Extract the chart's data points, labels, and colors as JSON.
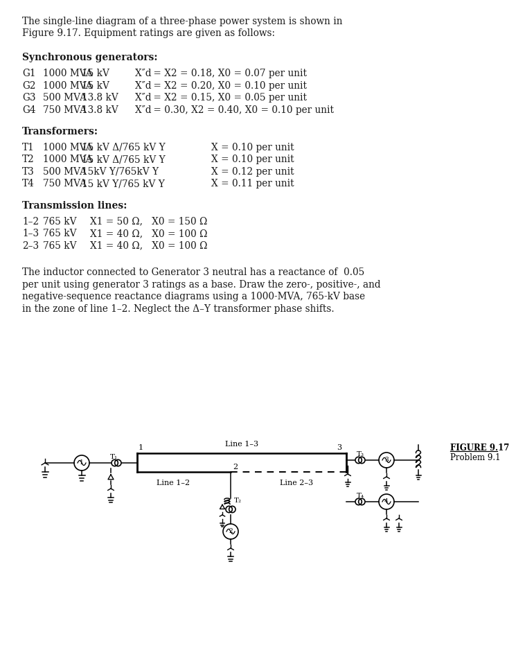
{
  "bg_color": "#ffffff",
  "text_color": "#1a1a1a",
  "title_line1": "The single-line diagram of a three-phase power system is shown in",
  "title_line2": "Figure 9.17. Equipment ratings are given as follows:",
  "sync_header": "Synchronous generators:",
  "gen_rows": [
    [
      "G1",
      "1000 MVA",
      "15 kV",
      "X″d = X2 = 0.18, X0 = 0.07 per unit"
    ],
    [
      "G2",
      "1000 MVA",
      "15 kV",
      "X″d = X2 = 0.20, X0 = 0.10 per unit"
    ],
    [
      "G3",
      "500 MVA",
      "13.8 kV",
      "X″d = X2 = 0.15, X0 = 0.05 per unit"
    ],
    [
      "G4",
      "750 MVA",
      "13.8 kV",
      "X″d = 0.30, X2 = 0.40, X0 = 0.10 per unit"
    ]
  ],
  "trans_header": "Transformers:",
  "trans_rows": [
    [
      "T1",
      "1000 MVA",
      "15 kV Δ/765 kV Y",
      "X = 0.10 per unit"
    ],
    [
      "T2",
      "1000 MVA",
      "15 kV Δ/765 kV Y",
      "X = 0.10 per unit"
    ],
    [
      "T3",
      "500 MVA",
      "15kV Y/765kV Y",
      "X = 0.12 per unit"
    ],
    [
      "T4",
      "750 MVA",
      "15 kV Y/765 kV Y",
      "X = 0.11 per unit"
    ]
  ],
  "tline_header": "Transmission lines:",
  "tline_rows": [
    [
      "1–2",
      "765 kV",
      "X1 = 50 Ω,   X0 = 150 Ω"
    ],
    [
      "1–3",
      "765 kV",
      "X1 = 40 Ω,   X0 = 100 Ω"
    ],
    [
      "2–3",
      "765 kV",
      "X1 = 40 Ω,   X0 = 100 Ω"
    ]
  ],
  "paragraph_lines": [
    "The inductor connected to Generator 3 neutral has a reactance of  0.05",
    "per unit using generator 3 ratings as a base. Draw the zero-, positive-, and",
    "negative-sequence reactance diagrams using a 1000-MVA, 765-kV base",
    "in the zone of line 1–2. Neglect the Δ–Y transformer phase shifts."
  ],
  "figure_label": "FIGURE 9.17",
  "problem_label": "Problem 9.1"
}
